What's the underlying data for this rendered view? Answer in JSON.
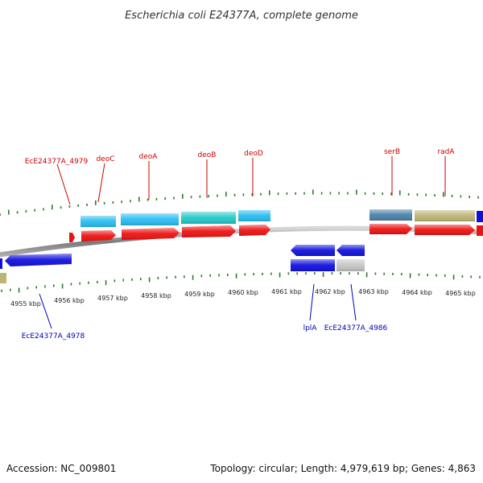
{
  "title": "Escherichia coli E24377A, complete genome",
  "footer": {
    "accession": "Accession: NC_009801",
    "summary": "Topology: circular; Length: 4,979,619 bp; Genes: 4,863"
  },
  "scale": {
    "tick_labels": [
      "4955 kbp",
      "4956 kbp",
      "4957 kbp",
      "4958 kbp",
      "4959 kbp",
      "4960 kbp",
      "4961 kbp",
      "4962 kbp",
      "4963 kbp",
      "4964 kbp",
      "4965 kbp"
    ]
  },
  "gene_labels": {
    "forward": [
      "EcE24377A_4979",
      "deoC",
      "deoA",
      "deoB",
      "deoD",
      "serB",
      "radA"
    ],
    "reverse": [
      "EcE24377A_4978",
      "lplA",
      "EcE24377A_4986"
    ]
  },
  "colors": {
    "backbone": "#8a8a8a",
    "cds": "#ee1111",
    "gene_light_blue": "#27bdf0",
    "gene_teal": "#20c8c8",
    "gene_steel": "#4a80a8",
    "gene_khaki": "#bdb574",
    "gene_blue": "#1010dd",
    "gene_gray": "#c4c4c4",
    "tick_green": "#2b7a2b",
    "label_red": "#cc0000",
    "label_blue": "#0000bb"
  }
}
